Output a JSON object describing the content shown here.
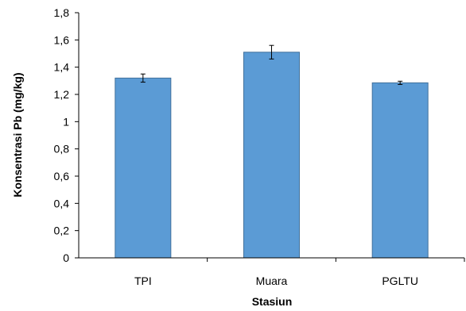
{
  "chart_data": {
    "type": "bar",
    "categories": [
      "TPI",
      "Muara",
      "PGLTU"
    ],
    "values": [
      1.32,
      1.51,
      1.285
    ],
    "errors": [
      0.03,
      0.05,
      0.012
    ],
    "xlabel": "Stasiun",
    "ylabel": "Konsentrasi Pb (mg/kg)",
    "ylim": [
      0,
      1.8
    ],
    "yticks": [
      "0",
      "0,2",
      "0,4",
      "0,6",
      "0,8",
      "1",
      "1,2",
      "1,4",
      "1,6",
      "1,8"
    ],
    "grid": false,
    "bar_color": "#5b9bd5",
    "bar_edge_color": "#41719c"
  }
}
